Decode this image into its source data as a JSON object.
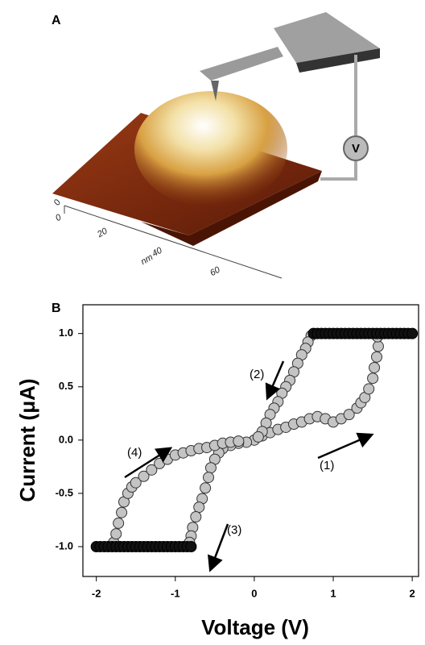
{
  "panel_a": {
    "label": "A",
    "scale_labels": [
      "0",
      "0",
      "20",
      "40",
      "60"
    ],
    "unit": "nm",
    "meter": "V"
  },
  "chart_data": {
    "type": "scatter",
    "panel_label": "B",
    "x_label": "Voltage (V)",
    "y_label": "Current (μA)",
    "xlim": [
      -2.17,
      2.08
    ],
    "ylim": [
      -1.28,
      1.27
    ],
    "xticks": [
      -2,
      -1,
      0,
      1,
      2
    ],
    "yticks": [
      {
        "value": 1,
        "label": "1.0"
      },
      {
        "value": 0.5,
        "label": "0.5"
      },
      {
        "value": 0,
        "label": "0.0"
      },
      {
        "value": -0.5,
        "label": "-0.5"
      },
      {
        "value": -1,
        "label": "-1.0"
      }
    ],
    "annotations": [
      "(1)",
      "(2)",
      "(3)",
      "(4)"
    ],
    "series": [
      {
        "color": "#c4c4c4",
        "edgecolor": "#333333",
        "x": [
          0,
          0.1,
          0.2,
          0.3,
          0.4,
          0.5,
          0.6,
          0.7,
          0.8,
          0.9,
          1.0,
          1.1,
          1.2,
          1.3,
          1.35,
          1.4,
          1.45,
          1.5,
          1.52,
          1.55,
          1.57,
          1.56,
          0.72,
          0.68,
          0.65,
          0.6,
          0.55,
          0.5,
          0.45,
          0.4,
          0.35,
          0.3,
          0.25,
          0.2,
          0.15,
          0.1,
          0.05,
          -0.1,
          -0.2,
          -0.3,
          -0.4,
          -0.45,
          -0.5,
          -0.55,
          -0.58,
          -0.62,
          -0.66,
          -0.7,
          -0.74,
          -0.78,
          -0.8,
          -0.82,
          -1.78,
          -1.75,
          -1.72,
          -1.68,
          -1.65,
          -1.6,
          -1.55,
          -1.5,
          -1.4,
          -1.3,
          -1.2,
          -1.1,
          -1.0,
          -0.9,
          -0.8,
          -0.7,
          -0.6,
          -0.5,
          -0.4,
          -0.3,
          -0.2
        ],
        "values": [
          0,
          0.04,
          0.07,
          0.1,
          0.12,
          0.15,
          0.17,
          0.2,
          0.22,
          0.2,
          0.17,
          0.2,
          0.24,
          0.3,
          0.35,
          0.4,
          0.48,
          0.58,
          0.68,
          0.78,
          0.88,
          0.97,
          0.98,
          0.92,
          0.86,
          0.8,
          0.72,
          0.64,
          0.56,
          0.5,
          0.44,
          0.36,
          0.3,
          0.24,
          0.16,
          0.08,
          0.03,
          -0.02,
          -0.03,
          -0.05,
          -0.08,
          -0.12,
          -0.18,
          -0.26,
          -0.35,
          -0.45,
          -0.55,
          -0.63,
          -0.72,
          -0.82,
          -0.9,
          -0.96,
          -0.96,
          -0.88,
          -0.78,
          -0.68,
          -0.58,
          -0.5,
          -0.44,
          -0.4,
          -0.34,
          -0.28,
          -0.22,
          -0.18,
          -0.14,
          -0.12,
          -0.1,
          -0.08,
          -0.07,
          -0.05,
          -0.03,
          -0.02,
          -0.01
        ]
      },
      {
        "color": "#111111",
        "edgecolor": "#000000",
        "x": [
          -2.0,
          -1.95,
          -1.9,
          -1.85,
          -1.8,
          -1.75,
          -1.7,
          -1.65,
          -1.6,
          -1.55,
          -1.5,
          -1.45,
          -1.4,
          -1.35,
          -1.3,
          -1.25,
          -1.2,
          -1.15,
          -1.1,
          -1.05,
          -1.0,
          -0.95,
          -0.9,
          -0.85,
          -0.8,
          0.75,
          0.8,
          0.85,
          0.9,
          0.95,
          1.0,
          1.05,
          1.1,
          1.15,
          1.2,
          1.25,
          1.3,
          1.35,
          1.4,
          1.45,
          1.5,
          1.55,
          1.6,
          1.65,
          1.7,
          1.75,
          1.8,
          1.85,
          1.9,
          1.95,
          2.0
        ],
        "values": [
          -1,
          -1,
          -1,
          -1,
          -1,
          -1,
          -1,
          -1,
          -1,
          -1,
          -1,
          -1,
          -1,
          -1,
          -1,
          -1,
          -1,
          -1,
          -1,
          -1,
          -1,
          -1,
          -1,
          -1,
          -1,
          1,
          1,
          1,
          1,
          1,
          1,
          1,
          1,
          1,
          1,
          1,
          1,
          1,
          1,
          1,
          1,
          1,
          1,
          1,
          1,
          1,
          1,
          1,
          1,
          1,
          1
        ]
      }
    ]
  }
}
